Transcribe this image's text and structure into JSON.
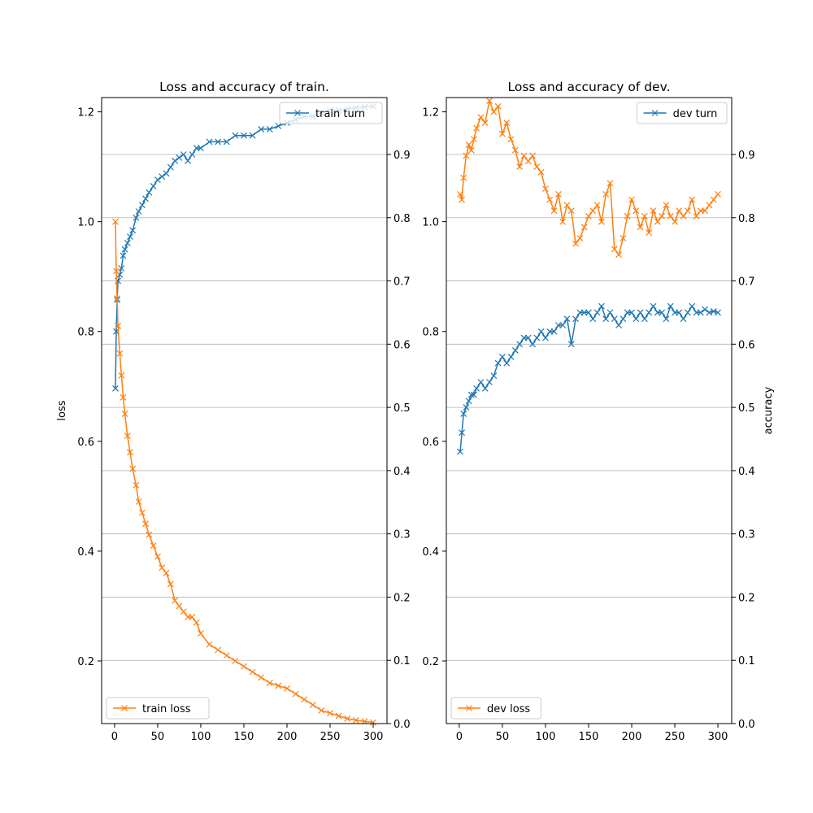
{
  "colors": {
    "turn": "#1f77b4",
    "loss": "#ff7f0e"
  },
  "chart_data": [
    {
      "type": "line",
      "title": "Loss and accuracy of train.",
      "xlabel": "",
      "ylabel_left": "loss",
      "ylabel_right": "",
      "xlim": [
        -15,
        316
      ],
      "ylim_left": [
        0.086,
        1.226
      ],
      "ylim_right": [
        0.0,
        0.99
      ],
      "x_ticks": [
        "0",
        "50",
        "100",
        "150",
        "200",
        "250",
        "300"
      ],
      "y_left_ticks": [
        "0.2",
        "0.4",
        "0.6",
        "0.8",
        "1.0",
        "1.2"
      ],
      "y_right_ticks": [
        "0.0",
        "0.1",
        "0.2",
        "0.3",
        "0.4",
        "0.5",
        "0.6",
        "0.7",
        "0.8",
        "0.9"
      ],
      "grid": "right axis, horizontal",
      "series": [
        {
          "name": "train turn",
          "axis": "right",
          "color": "#1f77b4",
          "legend_position": "upper right",
          "x": [
            1,
            2,
            3,
            4,
            6,
            8,
            10,
            12,
            15,
            18,
            21,
            25,
            28,
            32,
            36,
            40,
            45,
            50,
            55,
            60,
            65,
            70,
            75,
            80,
            85,
            90,
            95,
            100,
            110,
            120,
            130,
            140,
            150,
            160,
            170,
            180,
            190,
            200,
            210,
            220,
            230,
            240,
            250,
            260,
            270,
            280,
            290,
            300
          ],
          "values": [
            0.53,
            0.62,
            0.67,
            0.7,
            0.71,
            0.72,
            0.74,
            0.75,
            0.76,
            0.77,
            0.78,
            0.8,
            0.81,
            0.82,
            0.83,
            0.84,
            0.85,
            0.86,
            0.865,
            0.87,
            0.88,
            0.89,
            0.895,
            0.9,
            0.89,
            0.9,
            0.91,
            0.91,
            0.92,
            0.92,
            0.92,
            0.93,
            0.93,
            0.93,
            0.94,
            0.94,
            0.945,
            0.95,
            0.955,
            0.96,
            0.96,
            0.965,
            0.97,
            0.97,
            0.972,
            0.974,
            0.975,
            0.976
          ]
        },
        {
          "name": "train loss",
          "axis": "left",
          "color": "#ff7f0e",
          "legend_position": "lower left",
          "x": [
            1,
            2,
            3,
            4,
            6,
            8,
            10,
            12,
            15,
            18,
            21,
            25,
            28,
            32,
            36,
            40,
            45,
            50,
            55,
            60,
            65,
            70,
            75,
            80,
            85,
            90,
            95,
            100,
            110,
            120,
            130,
            140,
            150,
            160,
            170,
            180,
            190,
            200,
            210,
            220,
            230,
            240,
            250,
            260,
            270,
            280,
            290,
            300
          ],
          "values": [
            1.0,
            0.91,
            0.86,
            0.81,
            0.76,
            0.72,
            0.68,
            0.65,
            0.61,
            0.58,
            0.55,
            0.52,
            0.49,
            0.47,
            0.45,
            0.43,
            0.41,
            0.39,
            0.37,
            0.36,
            0.34,
            0.31,
            0.3,
            0.29,
            0.28,
            0.28,
            0.27,
            0.25,
            0.23,
            0.22,
            0.21,
            0.2,
            0.19,
            0.18,
            0.17,
            0.16,
            0.155,
            0.15,
            0.14,
            0.13,
            0.12,
            0.11,
            0.105,
            0.1,
            0.095,
            0.092,
            0.09,
            0.088
          ]
        }
      ]
    },
    {
      "type": "line",
      "title": "Loss and accuracy of dev.",
      "xlabel": "",
      "ylabel_left": "",
      "ylabel_right": "accuracy",
      "xlim": [
        -15,
        316
      ],
      "ylim_left": [
        0.086,
        1.226
      ],
      "ylim_right": [
        0.0,
        0.99
      ],
      "x_ticks": [
        "0",
        "50",
        "100",
        "150",
        "200",
        "250",
        "300"
      ],
      "y_left_ticks": [
        "0.2",
        "0.4",
        "0.6",
        "0.8",
        "1.0",
        "1.2"
      ],
      "y_right_ticks": [
        "0.0",
        "0.1",
        "0.2",
        "0.3",
        "0.4",
        "0.5",
        "0.6",
        "0.7",
        "0.8",
        "0.9"
      ],
      "grid": "right axis, horizontal",
      "series": [
        {
          "name": "dev turn",
          "axis": "right",
          "color": "#1f77b4",
          "legend_position": "upper right",
          "x": [
            1,
            3,
            5,
            8,
            11,
            14,
            17,
            20,
            25,
            30,
            35,
            40,
            45,
            50,
            55,
            60,
            65,
            70,
            75,
            80,
            85,
            90,
            95,
            100,
            105,
            110,
            115,
            120,
            125,
            130,
            135,
            140,
            145,
            150,
            155,
            160,
            165,
            170,
            175,
            180,
            185,
            190,
            195,
            200,
            205,
            210,
            215,
            220,
            225,
            230,
            235,
            240,
            245,
            250,
            255,
            260,
            265,
            270,
            275,
            280,
            285,
            290,
            295,
            300
          ],
          "values": [
            0.43,
            0.46,
            0.49,
            0.5,
            0.51,
            0.52,
            0.52,
            0.53,
            0.54,
            0.53,
            0.54,
            0.55,
            0.57,
            0.58,
            0.57,
            0.58,
            0.59,
            0.6,
            0.61,
            0.61,
            0.6,
            0.61,
            0.62,
            0.61,
            0.62,
            0.62,
            0.63,
            0.63,
            0.64,
            0.6,
            0.64,
            0.65,
            0.65,
            0.65,
            0.64,
            0.65,
            0.66,
            0.64,
            0.65,
            0.64,
            0.63,
            0.64,
            0.65,
            0.65,
            0.64,
            0.65,
            0.64,
            0.65,
            0.66,
            0.65,
            0.65,
            0.64,
            0.66,
            0.65,
            0.65,
            0.64,
            0.65,
            0.66,
            0.65,
            0.65,
            0.655,
            0.65,
            0.652,
            0.65
          ]
        },
        {
          "name": "dev loss",
          "axis": "left",
          "color": "#ff7f0e",
          "legend_position": "lower left",
          "x": [
            1,
            3,
            5,
            8,
            11,
            14,
            17,
            20,
            25,
            30,
            35,
            40,
            45,
            50,
            55,
            60,
            65,
            70,
            75,
            80,
            85,
            90,
            95,
            100,
            105,
            110,
            115,
            120,
            125,
            130,
            135,
            140,
            145,
            150,
            155,
            160,
            165,
            170,
            175,
            180,
            185,
            190,
            195,
            200,
            205,
            210,
            215,
            220,
            225,
            230,
            235,
            240,
            245,
            250,
            255,
            260,
            265,
            270,
            275,
            280,
            285,
            290,
            295,
            300
          ],
          "values": [
            1.05,
            1.04,
            1.08,
            1.12,
            1.14,
            1.13,
            1.15,
            1.17,
            1.19,
            1.18,
            1.22,
            1.2,
            1.21,
            1.16,
            1.18,
            1.15,
            1.13,
            1.1,
            1.12,
            1.11,
            1.12,
            1.1,
            1.09,
            1.06,
            1.04,
            1.02,
            1.05,
            1.0,
            1.03,
            1.02,
            0.96,
            0.97,
            0.99,
            1.01,
            1.02,
            1.03,
            1.0,
            1.05,
            1.07,
            0.95,
            0.94,
            0.97,
            1.01,
            1.04,
            1.02,
            0.99,
            1.01,
            0.98,
            1.02,
            1.0,
            1.01,
            1.03,
            1.01,
            1.0,
            1.02,
            1.01,
            1.02,
            1.04,
            1.01,
            1.02,
            1.02,
            1.03,
            1.04,
            1.05
          ]
        }
      ]
    }
  ]
}
